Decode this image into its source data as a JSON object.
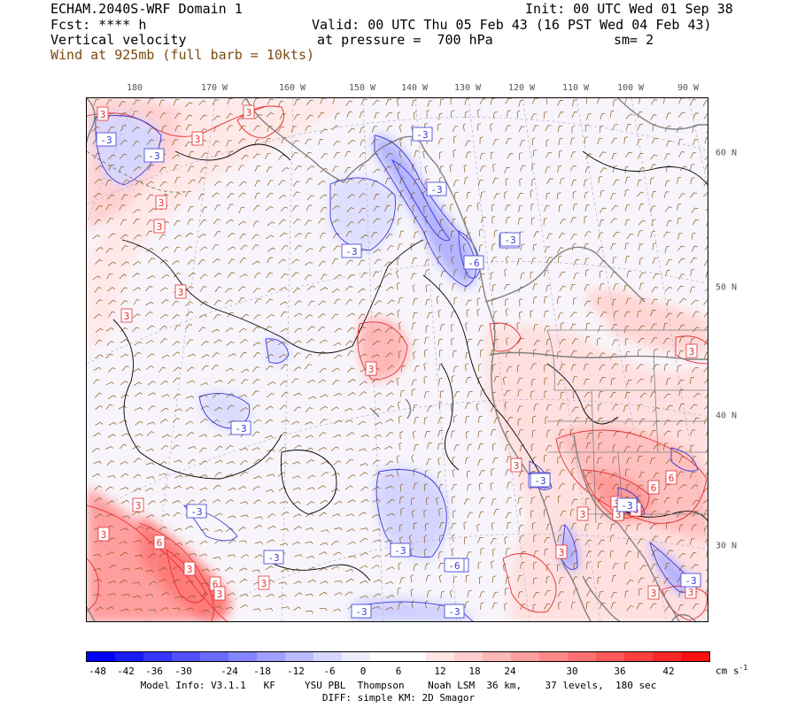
{
  "header": {
    "model_line": "ECHAM.2040S-WRF Domain 1",
    "init_line": "Init: 00 UTC Wed 01 Sep 38",
    "fcst_line": "Fcst: **** h",
    "valid_line": "Valid: 00 UTC Thu 05 Feb 43 (16 PST Wed 04 Feb 43)",
    "field_line": "Vertical velocity",
    "pressure_line": "at pressure =  700 hPa",
    "sm_line": "sm= 2",
    "wind_line": "Wind at 925mb (full barb = 10kts)"
  },
  "map": {
    "lon_labels": [
      "180",
      "170 W",
      "160 W",
      "150 W",
      "140 W",
      "130 W",
      "120 W",
      "110 W",
      "100 W",
      "90 W"
    ],
    "lat_labels": [
      "60 N",
      "50 N",
      "40 N",
      "30 N"
    ],
    "contour_labels": {
      "positive": [
        "3",
        "3",
        "3",
        "3",
        "3",
        "3",
        "3",
        "3",
        "3",
        "3",
        "3",
        "6",
        "6",
        "3",
        "6",
        "3",
        "3",
        "3",
        "3",
        "3",
        "6",
        "3",
        "3",
        "6",
        "3",
        "3"
      ],
      "negative": [
        "-3",
        "-3",
        "-3",
        "-3",
        "-3",
        "-6",
        "-3",
        "-3",
        "-3",
        "-3",
        "-3",
        "-3",
        "-6",
        "-3",
        "-3",
        "-3",
        "-3",
        "-3",
        "-3",
        "-6",
        "-3"
      ]
    },
    "colors": {
      "positive_contour": "#e53030",
      "negative_contour": "#3a3ad8",
      "zero_contour": "#000000",
      "coast": "#808080",
      "wind_barb": "#8b5a1c"
    }
  },
  "colorbar": {
    "labels": [
      "-48",
      "-42",
      "-36",
      "-30",
      "-24",
      "-18",
      "-12",
      "-6",
      "0",
      "6",
      "12",
      "18",
      "24",
      "30",
      "36",
      "42"
    ],
    "unit": "cm s",
    "unit_exp": "-1",
    "colors": [
      "#0000ff",
      "#1a1aff",
      "#3535ff",
      "#5050ff",
      "#6a6aff",
      "#8585ff",
      "#a0a0ff",
      "#bbbbff",
      "#d6d6ff",
      "#ececff",
      "#ffffff",
      "#ffffff",
      "#ffe6e6",
      "#ffcfcf",
      "#ffb8b8",
      "#ffa0a0",
      "#ff8888",
      "#ff7070",
      "#ff5858",
      "#ff4040",
      "#ff2828",
      "#ff1010"
    ]
  },
  "footer": {
    "line1": "Model Info: V3.1.1   KF     YSU PBL  Thompson    Noah LSM  36 km,    37 levels,  180 sec",
    "line2": "DIFF: simple KM: 2D Smagor"
  }
}
